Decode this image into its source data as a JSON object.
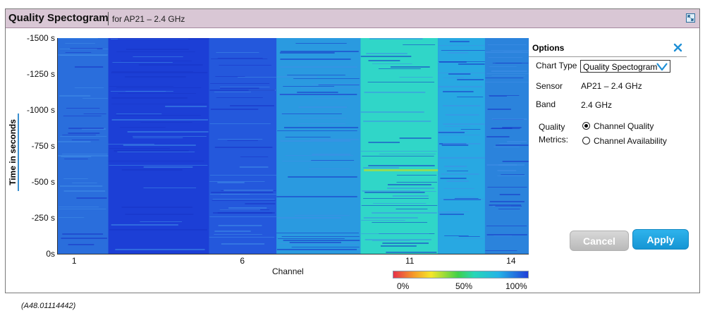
{
  "header": {
    "title": "Quality Spectogram",
    "subtitle": "for AP21 – 2.4 GHz"
  },
  "chart_data": {
    "type": "heatmap",
    "ylabel": "Time in seconds",
    "xlabel": "Channel",
    "y_ticks": [
      "-1500 s",
      "-1250 s",
      "-1000 s",
      "-750 s",
      "-500 s",
      "-250 s",
      "0s"
    ],
    "x_ticks": [
      "1",
      "6",
      "11",
      "14"
    ],
    "x_range": [
      0.5,
      14.5
    ],
    "y_range": [
      -1500,
      0
    ],
    "color_scale": {
      "labels": [
        "0%",
        "50%",
        "100%"
      ],
      "colors": [
        "#e6324a",
        "#f59a2a",
        "#f5e62a",
        "#3fd04a",
        "#27d6b8",
        "#25b4e6",
        "#1f3fd8"
      ]
    },
    "channel_bands": [
      {
        "from": 0.5,
        "to": 2.0,
        "quality_pct": 82,
        "color": "#2a6edc"
      },
      {
        "from": 2.0,
        "to": 5.0,
        "quality_pct": 96,
        "color": "#1c3fd6"
      },
      {
        "from": 5.0,
        "to": 7.0,
        "quality_pct": 90,
        "color": "#2458dc"
      },
      {
        "from": 7.0,
        "to": 9.5,
        "quality_pct": 72,
        "color": "#2a9ae0"
      },
      {
        "from": 9.5,
        "to": 11.8,
        "quality_pct": 60,
        "color": "#30d6c8"
      },
      {
        "from": 11.8,
        "to": 13.2,
        "quality_pct": 70,
        "color": "#28a8e2"
      },
      {
        "from": 13.2,
        "to": 14.5,
        "quality_pct": 78,
        "color": "#2b83dc"
      }
    ]
  },
  "options": {
    "title": "Options",
    "chart_type_label": "Chart Type",
    "chart_type_value": "Quality Spectogram",
    "sensor_label": "Sensor",
    "sensor_value": "AP21 – 2.4 GHz",
    "band_label": "Band",
    "band_value": "2.4 GHz",
    "quality_label_1": "Quality",
    "quality_label_2": "Metrics:",
    "radio_1": "Channel Quality",
    "radio_2": "Channel Availability",
    "radio_selected": 1
  },
  "buttons": {
    "cancel": "Cancel",
    "apply": "Apply"
  },
  "caption": "(A48.01114442)",
  "icons": {
    "expand": "expand-icon",
    "close": "close-icon",
    "dropdown": "chevron-down-icon"
  }
}
